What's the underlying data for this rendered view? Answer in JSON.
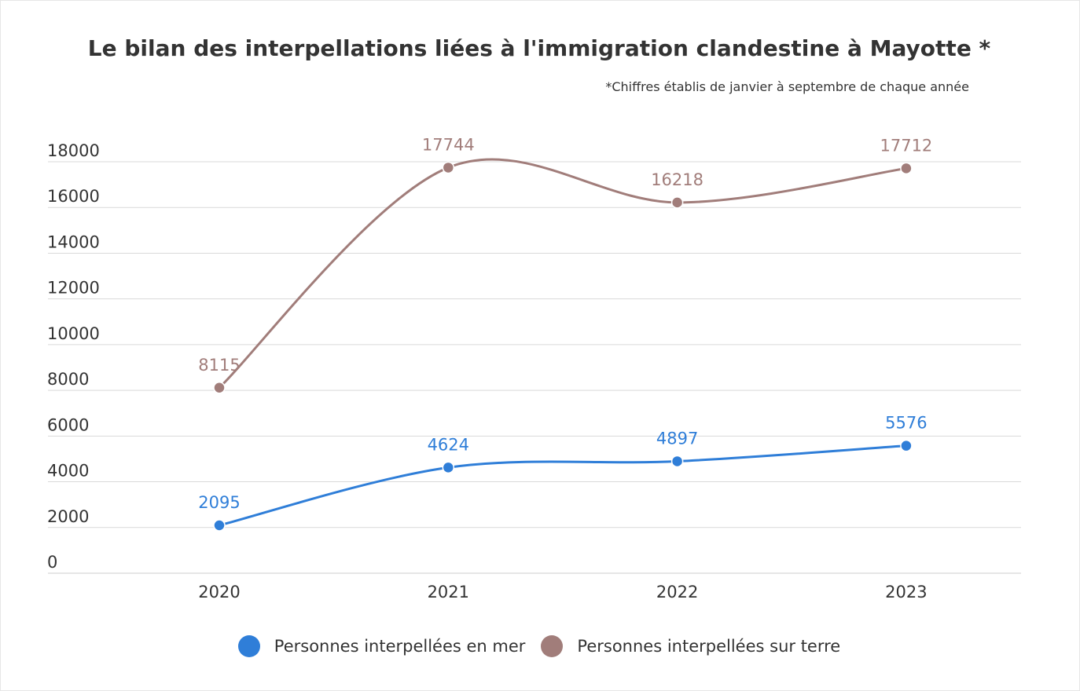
{
  "chart_data": {
    "type": "line",
    "title": "Le bilan des interpellations liées à l'immigration clandestine à Mayotte *",
    "subtitle": "*Chiffres établis de janvier à septembre de chaque année",
    "categories": [
      "2020",
      "2021",
      "2022",
      "2023"
    ],
    "series": [
      {
        "name": "Personnes interpellées en mer",
        "values": [
          2095,
          4624,
          4897,
          5576
        ],
        "color": "#2f7ed8"
      },
      {
        "name": "Personnes interpellées sur terre",
        "values": [
          8115,
          17744,
          16218,
          17712
        ],
        "color": "#a17d7a"
      }
    ],
    "ylim": [
      0,
      18000
    ],
    "yticks": [
      "0",
      "2000",
      "4000",
      "6000",
      "8000",
      "10000",
      "12000",
      "14000",
      "16000",
      "18000"
    ],
    "grid": true,
    "legend_position": "bottom",
    "data_labels": true,
    "smooth": true
  }
}
